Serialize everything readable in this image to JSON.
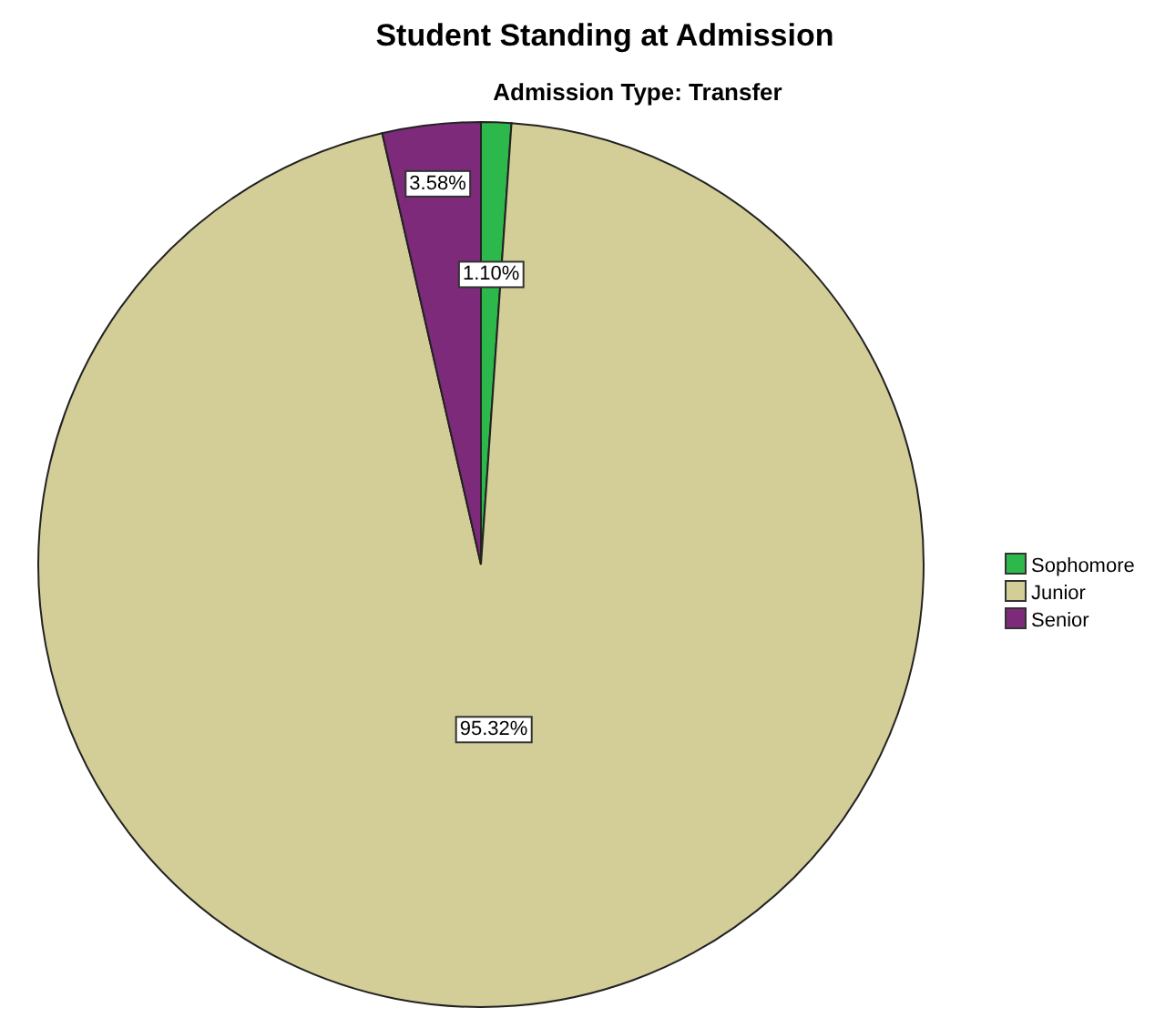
{
  "chart_data": {
    "type": "pie",
    "title": "Student Standing at Admission",
    "subtitle": "Admission Type: Transfer",
    "categories": [
      "Sophomore",
      "Junior",
      "Senior"
    ],
    "values": [
      1.1,
      95.32,
      3.58
    ],
    "colors": [
      "#2db84b",
      "#d3cd97",
      "#7d2a7b"
    ],
    "value_labels": [
      "1.10%",
      "95.32%",
      "3.58%"
    ],
    "legend": "right"
  }
}
